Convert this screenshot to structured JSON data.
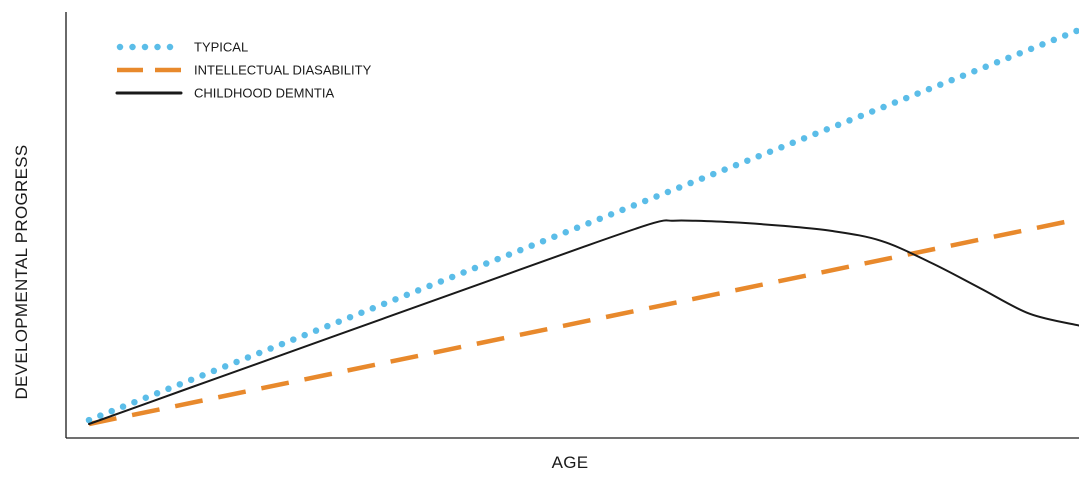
{
  "chart_data": {
    "type": "line",
    "title": "",
    "xlabel": "AGE",
    "ylabel": "DEVELOPMENTAL PROGRESS",
    "xlim": [
      0,
      100
    ],
    "ylim": [
      0,
      100
    ],
    "grid": false,
    "ticks_shown": false,
    "legend_position": "top-left",
    "series": [
      {
        "name": "TYPICAL",
        "style": "dotted",
        "color": "#5bbde8",
        "x": [
          0,
          100
        ],
        "y": [
          1,
          100
        ]
      },
      {
        "name": "INTELLECTUAL DIASABILITY",
        "style": "dashed",
        "color": "#e8892c",
        "x": [
          0,
          100
        ],
        "y": [
          0,
          52
        ]
      },
      {
        "name": "CHILDHOOD DEMNTIA",
        "style": "solid",
        "color": "#1a1a1a",
        "x": [
          0,
          10,
          20,
          30,
          40,
          50,
          57,
          59,
          61,
          65,
          70,
          75,
          80,
          85,
          90,
          95,
          100
        ],
        "y": [
          0,
          9,
          18,
          27,
          36,
          45,
          51,
          51.6,
          51.6,
          51.2,
          50.3,
          49,
          46.5,
          41,
          34.5,
          28,
          25
        ]
      }
    ]
  }
}
